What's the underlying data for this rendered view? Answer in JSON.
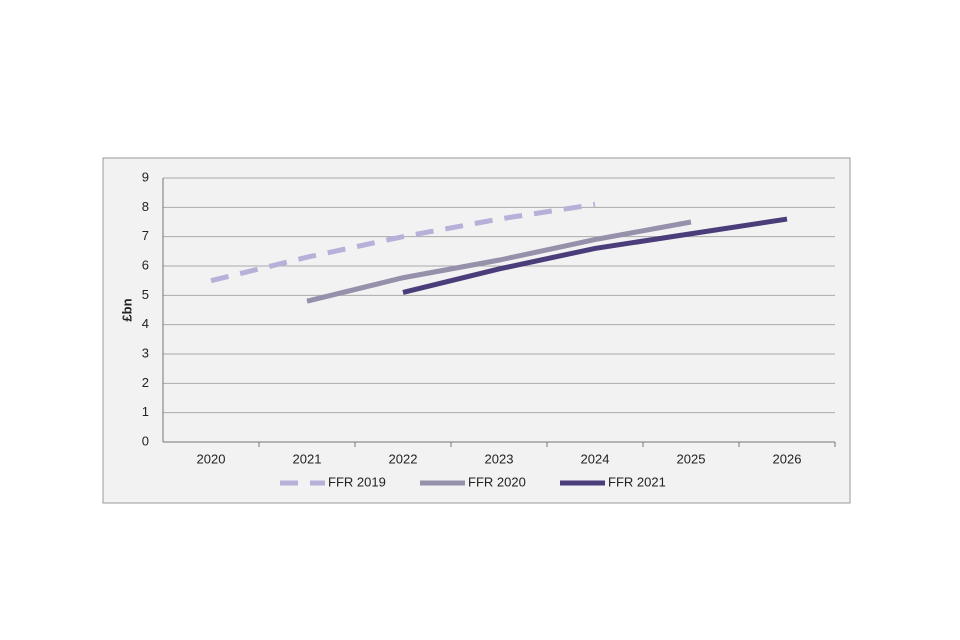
{
  "chart_data": {
    "type": "line",
    "y_label": "£bn",
    "categories": [
      "2020",
      "2021",
      "2022",
      "2023",
      "2024",
      "2025",
      "2026"
    ],
    "series": [
      {
        "name": "FFR 2019",
        "color": "#b8b0d8",
        "dashed": true,
        "values": [
          5.5,
          6.3,
          7.0,
          7.6,
          8.1,
          null,
          null
        ]
      },
      {
        "name": "FFR 2020",
        "color": "#9690aa",
        "dashed": false,
        "values": [
          null,
          4.8,
          5.6,
          6.2,
          6.9,
          7.5,
          null
        ]
      },
      {
        "name": "FFR 2021",
        "color": "#4a3d7a",
        "dashed": false,
        "values": [
          null,
          null,
          5.1,
          5.9,
          6.6,
          7.1,
          7.6
        ]
      }
    ],
    "ylim": [
      0,
      9
    ],
    "yticks": [
      0,
      1,
      2,
      3,
      4,
      5,
      6,
      7,
      8,
      9
    ],
    "grid": true,
    "legend": "bottom"
  }
}
